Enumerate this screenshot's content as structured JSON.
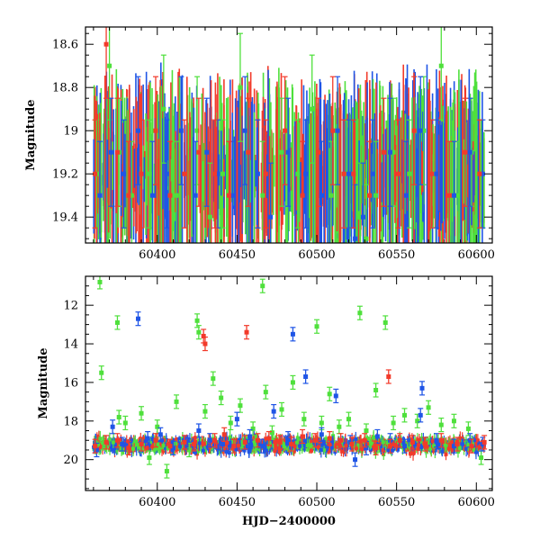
{
  "chart_data": [
    {
      "type": "scatter",
      "panel": "top",
      "title": "",
      "xlabel": "",
      "ylabel": "Magnitude",
      "xlim": [
        60355,
        60610
      ],
      "ylim": [
        19.52,
        18.52
      ],
      "y_inverted": true,
      "xticks": [
        60400,
        60450,
        60500,
        60550,
        60600
      ],
      "xtick_labels": [
        "60400",
        "60450",
        "60500",
        "60550",
        "60600"
      ],
      "yticks": [
        18.6,
        18.8,
        19.0,
        19.2,
        19.4
      ],
      "ytick_labels": [
        "18.6",
        "18.8",
        "19",
        "19.2",
        "19.4"
      ],
      "grid": false,
      "legend": "none",
      "series": [
        {
          "color": "#4fe03c",
          "x": [
            60362,
            60370,
            60376,
            60384,
            60395,
            60404,
            60412,
            60425,
            60433,
            60441,
            60452,
            60466,
            60478,
            60488,
            60497,
            60509,
            60519,
            60527,
            60531,
            60537,
            60548,
            60558,
            60567,
            60578,
            60588,
            60597,
            60603
          ],
          "y": [
            19.2,
            18.7,
            19.1,
            19.3,
            19.2,
            18.9,
            19.3,
            19.0,
            19.4,
            19.2,
            18.8,
            19.3,
            19.1,
            19.2,
            18.9,
            19.3,
            19.2,
            19.4,
            19.5,
            19.3,
            19.1,
            19.2,
            19.0,
            18.7,
            19.3,
            19.1,
            19.2
          ]
        },
        {
          "color": "#1f55e6",
          "x": [
            60364,
            60371,
            60379,
            60388,
            60397,
            60406,
            60415,
            60424,
            60431,
            60438,
            60447,
            60455,
            60463,
            60471,
            60482,
            60493,
            60503,
            60513,
            60520,
            60524,
            60529,
            60535,
            60546,
            60556,
            60565,
            60575,
            60586,
            60596,
            60604
          ],
          "y": [
            19.3,
            19.1,
            19.2,
            19.0,
            19.3,
            19.2,
            19.0,
            19.3,
            19.1,
            19.2,
            19.3,
            19.0,
            19.2,
            19.4,
            19.1,
            19.2,
            19.3,
            19.0,
            19.2,
            19.5,
            19.4,
            19.2,
            19.1,
            19.3,
            19.0,
            19.2,
            19.3,
            19.1,
            19.2
          ]
        },
        {
          "color": "#f23a2a",
          "x": [
            60361,
            60368,
            60375,
            60382,
            60390,
            60399,
            60408,
            60417,
            60426,
            60436,
            60445,
            60457,
            60468,
            60480,
            60491,
            60501,
            60510,
            60517,
            60523,
            60533,
            60542,
            60551,
            60561,
            60572,
            60583,
            60593,
            60602
          ],
          "y": [
            19.2,
            18.6,
            19.1,
            19.3,
            19.2,
            19.0,
            19.3,
            19.2,
            19.1,
            19.2,
            19.3,
            19.1,
            19.2,
            19.0,
            19.3,
            19.1,
            19.0,
            19.2,
            19.2,
            19.3,
            19.1,
            19.2,
            19.0,
            19.2,
            19.3,
            19.1,
            19.2
          ]
        }
      ]
    },
    {
      "type": "scatter",
      "panel": "bottom",
      "title": "",
      "xlabel": "HJD−2400000",
      "ylabel": "Magnitude",
      "xlim": [
        60355,
        60610
      ],
      "ylim": [
        21.6,
        10.5
      ],
      "y_inverted": true,
      "xticks": [
        60400,
        60450,
        60500,
        60550,
        60600
      ],
      "xtick_labels": [
        "60400",
        "60450",
        "60500",
        "60550",
        "60600"
      ],
      "yticks": [
        12,
        14,
        16,
        18,
        20
      ],
      "ytick_labels": [
        "12",
        "14",
        "16",
        "18",
        "20"
      ],
      "grid": false,
      "legend": "none",
      "series": [
        {
          "color": "#4fe03c",
          "x": [
            60364,
            60365,
            60375,
            60376,
            60380,
            60390,
            60395,
            60400,
            60406,
            60412,
            60420,
            60425,
            60426,
            60430,
            60435,
            60440,
            60446,
            60452,
            60460,
            60466,
            60468,
            60472,
            60478,
            60485,
            60492,
            60500,
            60503,
            60508,
            60514,
            60520,
            60527,
            60531,
            60537,
            60543,
            60548,
            60555,
            60563,
            60570,
            60578,
            60586,
            60595,
            60603
          ],
          "y": [
            10.8,
            15.5,
            12.9,
            17.8,
            18.1,
            17.6,
            19.9,
            18.3,
            20.6,
            17.0,
            19.5,
            12.8,
            13.4,
            17.5,
            15.8,
            16.8,
            18.1,
            17.2,
            18.4,
            11.0,
            16.5,
            18.6,
            17.4,
            16.0,
            17.9,
            13.1,
            18.1,
            16.6,
            18.3,
            17.9,
            12.4,
            18.5,
            16.4,
            12.9,
            18.1,
            17.7,
            18.0,
            17.3,
            18.2,
            18.0,
            18.4,
            19.9
          ]
        },
        {
          "color": "#1f55e6",
          "x": [
            60362,
            60372,
            60378,
            60388,
            60394,
            60402,
            60410,
            60418,
            60426,
            60433,
            60441,
            60450,
            60458,
            60465,
            60473,
            60482,
            60485,
            60493,
            60503,
            60512,
            60521,
            60524,
            60531,
            60538,
            60546,
            60555,
            60565,
            60566,
            60575,
            60586,
            60596,
            60604
          ],
          "y": [
            19.5,
            18.3,
            19.2,
            12.7,
            18.9,
            18.7,
            19.4,
            19.1,
            18.5,
            19.0,
            19.2,
            17.9,
            18.8,
            19.3,
            17.5,
            18.9,
            13.5,
            15.7,
            18.7,
            16.7,
            19.1,
            20.0,
            19.4,
            18.8,
            19.0,
            19.3,
            17.7,
            16.3,
            19.0,
            19.3,
            19.0,
            19.2
          ]
        },
        {
          "color": "#f23a2a",
          "x": [
            60361,
            60368,
            60375,
            60382,
            60390,
            60399,
            60408,
            60417,
            60423,
            60429,
            60430,
            60436,
            60442,
            60448,
            60455,
            60456,
            60463,
            60470,
            60477,
            60484,
            60491,
            60499,
            60508,
            60515,
            60522,
            60530,
            60537,
            60545,
            60546,
            60552,
            60560,
            60568,
            60578,
            60588,
            60597,
            60605
          ],
          "y": [
            19.3,
            19.1,
            19.0,
            19.4,
            19.2,
            19.0,
            19.3,
            19.1,
            19.2,
            13.6,
            14.0,
            19.0,
            18.7,
            19.3,
            19.1,
            13.4,
            19.0,
            18.9,
            19.1,
            19.2,
            18.8,
            19.0,
            18.9,
            19.0,
            19.2,
            19.0,
            19.4,
            15.7,
            19.3,
            19.0,
            19.1,
            19.2,
            19.0,
            19.2,
            19.3,
            19.1
          ]
        }
      ]
    }
  ]
}
